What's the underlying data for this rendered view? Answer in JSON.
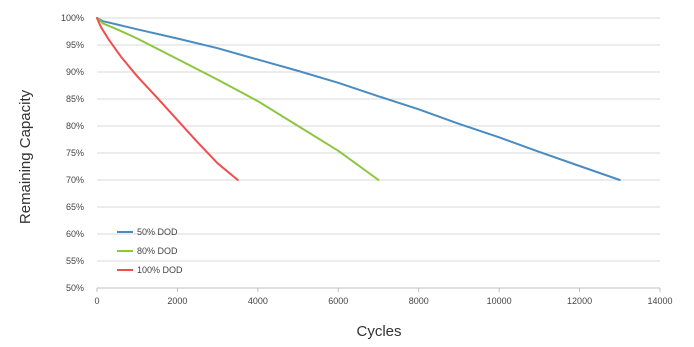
{
  "chart_data": {
    "type": "line",
    "title": "",
    "xlabel": "Cycles",
    "ylabel": "Remaining Capacity",
    "xlim": [
      0,
      14000
    ],
    "ylim": [
      50,
      100
    ],
    "x_ticks": [
      0,
      2000,
      4000,
      6000,
      8000,
      10000,
      12000,
      14000
    ],
    "x_tick_labels": [
      "0",
      "2000",
      "4000",
      "6000",
      "8000",
      "10000",
      "12000",
      "14000"
    ],
    "y_ticks": [
      50,
      55,
      60,
      65,
      70,
      75,
      80,
      85,
      90,
      95,
      100
    ],
    "y_tick_labels": [
      "50%",
      "55%",
      "60%",
      "65%",
      "70%",
      "75%",
      "80%",
      "85%",
      "90%",
      "95%",
      "100%"
    ],
    "grid": "horizontal",
    "legend_position": "bottom-left",
    "series": [
      {
        "name": "50% DOD",
        "color": "#4a8cc2",
        "x": [
          0,
          150,
          500,
          1000,
          2000,
          3000,
          4000,
          5000,
          6000,
          7000,
          8000,
          9000,
          10000,
          11000,
          12000,
          13000
        ],
        "y": [
          100,
          99.4,
          98.8,
          97.9,
          96.2,
          94.4,
          92.3,
          90.2,
          88.0,
          85.5,
          83.1,
          80.4,
          77.9,
          75.2,
          72.6,
          70
        ]
      },
      {
        "name": "80% DOD",
        "color": "#8cc63f",
        "x": [
          0,
          150,
          500,
          1000,
          2000,
          3000,
          4000,
          5000,
          6000,
          7000
        ],
        "y": [
          100,
          99.0,
          97.9,
          96.2,
          92.4,
          88.6,
          84.6,
          80.0,
          75.4,
          70
        ]
      },
      {
        "name": "100% DOD",
        "color": "#f04e4e",
        "x": [
          0,
          100,
          300,
          600,
          1000,
          1500,
          2000,
          2500,
          3000,
          3500
        ],
        "y": [
          100,
          98.3,
          95.9,
          92.8,
          89.2,
          85.2,
          81.1,
          77.0,
          73.1,
          70
        ]
      }
    ]
  }
}
